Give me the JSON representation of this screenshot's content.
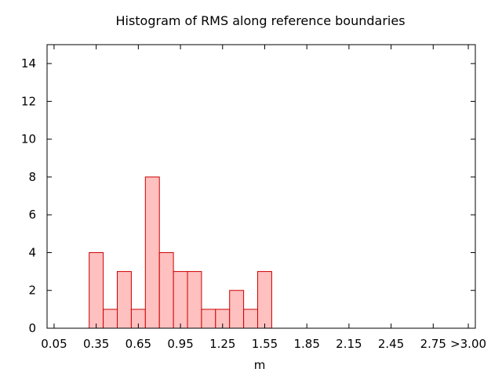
{
  "chart_data": {
    "type": "bar",
    "title": "Histogram of RMS along reference boundaries",
    "xlabel": "m",
    "ylabel": "",
    "ylim": [
      0,
      15
    ],
    "yticks": [
      0,
      2,
      4,
      6,
      8,
      10,
      12,
      14
    ],
    "xtick_labels": [
      "0.05",
      "0.35",
      "0.65",
      "0.95",
      "1.25",
      "1.55",
      "1.85",
      "2.15",
      "2.45",
      "2.75",
      ">3.00"
    ],
    "bin_width": 0.1,
    "bins": [
      {
        "center": 0.35,
        "count": 4
      },
      {
        "center": 0.45,
        "count": 1
      },
      {
        "center": 0.55,
        "count": 3
      },
      {
        "center": 0.65,
        "count": 1
      },
      {
        "center": 0.75,
        "count": 8
      },
      {
        "center": 0.85,
        "count": 4
      },
      {
        "center": 0.95,
        "count": 3
      },
      {
        "center": 1.05,
        "count": 3
      },
      {
        "center": 1.15,
        "count": 1
      },
      {
        "center": 1.25,
        "count": 1
      },
      {
        "center": 1.35,
        "count": 2
      },
      {
        "center": 1.45,
        "count": 1
      },
      {
        "center": 1.55,
        "count": 3
      }
    ],
    "grid": false,
    "bar_fill": "#ffc0c0",
    "bar_stroke": "#cc0000"
  }
}
